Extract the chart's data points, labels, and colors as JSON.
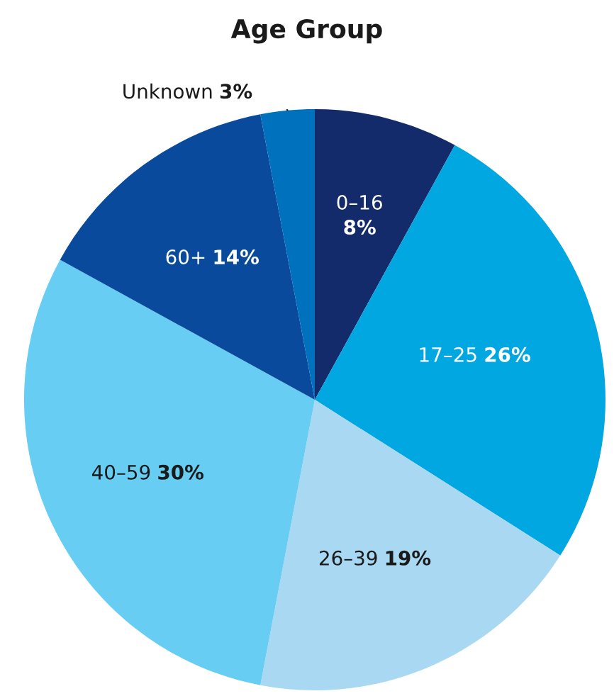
{
  "chart_data": {
    "type": "pie",
    "title": "Age Group",
    "categories": [
      "0–16",
      "17–25",
      "26–39",
      "40–59",
      "60+",
      "Unknown"
    ],
    "values": [
      8,
      26,
      19,
      30,
      14,
      3
    ],
    "value_labels": [
      "8%",
      "26%",
      "19%",
      "30%",
      "14%",
      "3%"
    ],
    "colors": [
      "#132a6b",
      "#00a7e1",
      "#a8d8f2",
      "#67cdf2",
      "#0a4a9c",
      "#0071bc"
    ],
    "legend": false
  }
}
